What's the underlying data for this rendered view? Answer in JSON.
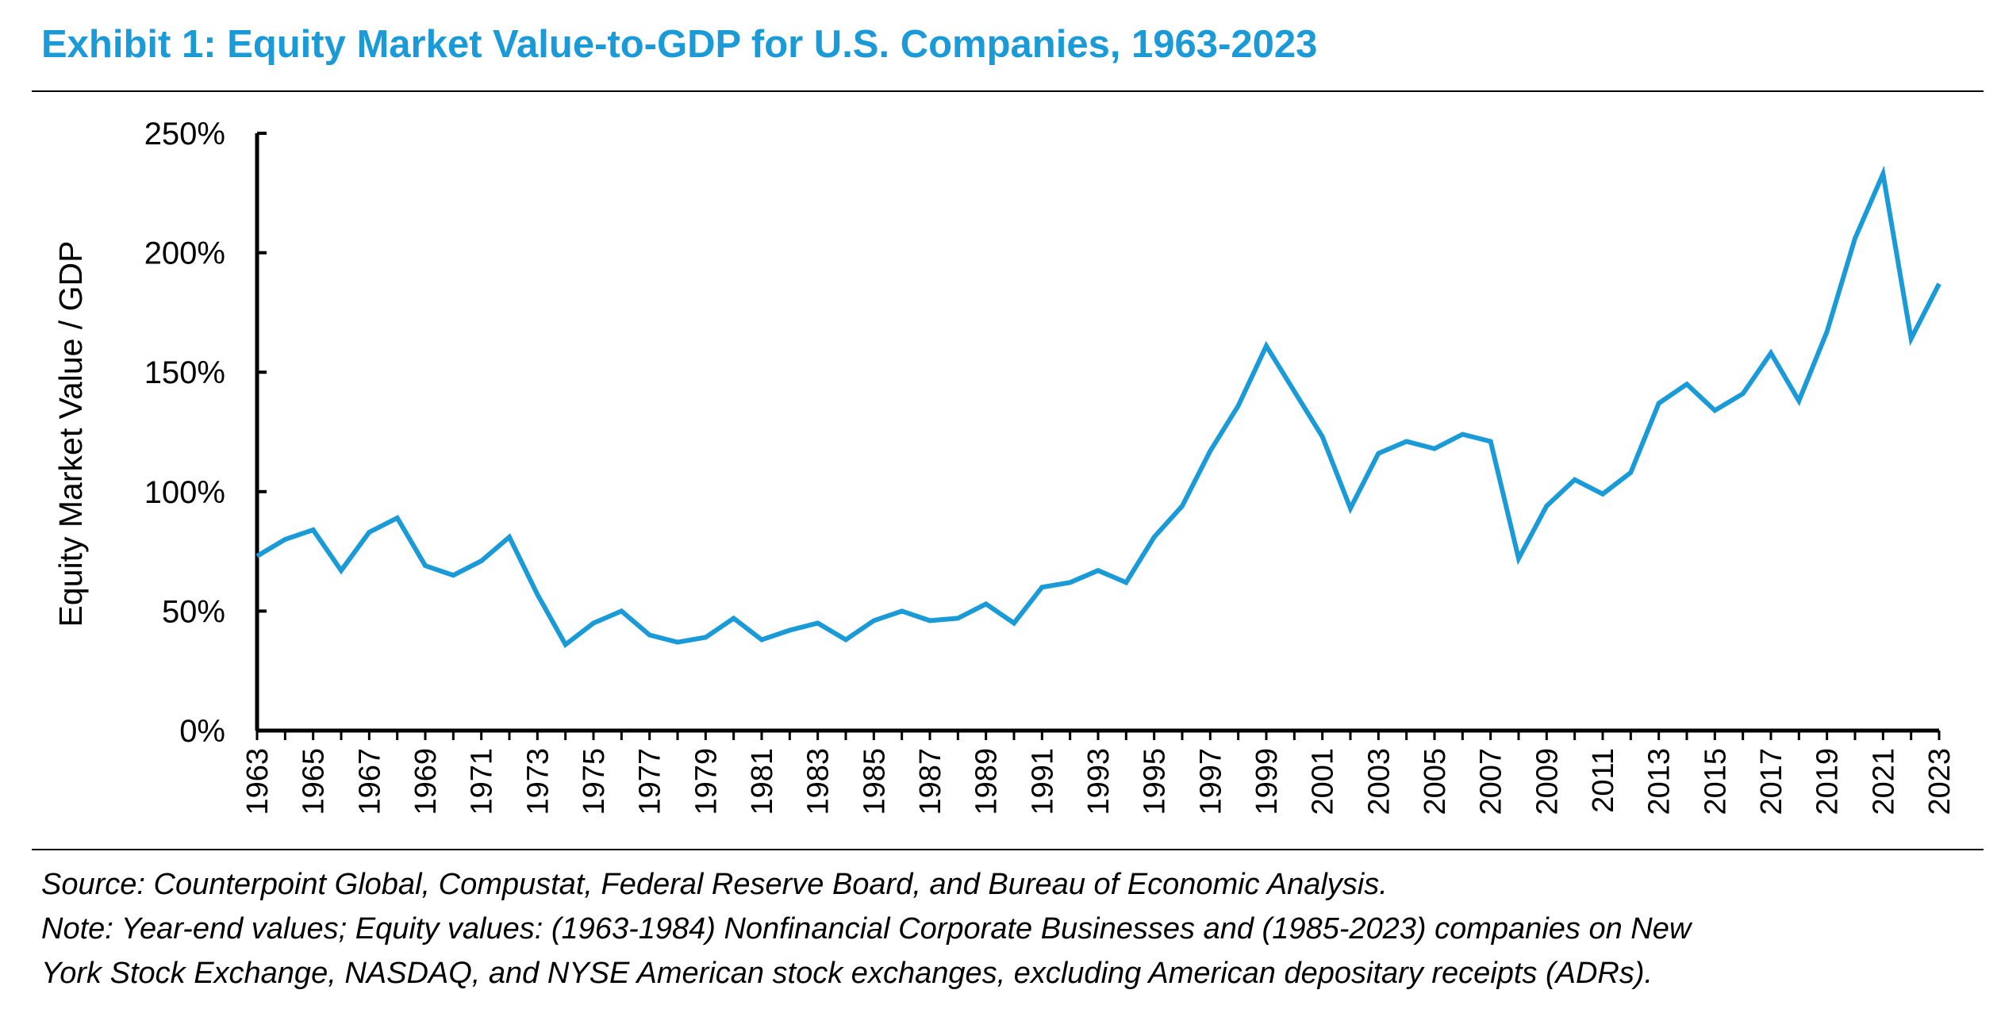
{
  "title": "Exhibit 1: Equity Market Value-to-GDP for U.S. Companies, 1963-2023",
  "footer": {
    "source": "Source: Counterpoint Global, Compustat, Federal Reserve Board, and Bureau of Economic Analysis.",
    "note_line1": "Note: Year-end values; Equity values: (1963-1984) Nonfinancial Corporate Businesses and (1985-2023) companies on New",
    "note_line2": "York Stock Exchange, NASDAQ, and NYSE American stock exchanges, excluding American depositary receipts (ADRs)."
  },
  "chart_data": {
    "type": "line",
    "title": "Exhibit 1: Equity Market Value-to-GDP for U.S. Companies, 1963-2023",
    "xlabel": "",
    "ylabel": "Equity Market Value / GDP",
    "ylim": [
      0,
      250
    ],
    "y_ticks": [
      "0%",
      "50%",
      "100%",
      "150%",
      "200%",
      "250%"
    ],
    "y_tick_values": [
      0,
      50,
      100,
      150,
      200,
      250
    ],
    "x": [
      1963,
      1964,
      1965,
      1966,
      1967,
      1968,
      1969,
      1970,
      1971,
      1972,
      1973,
      1974,
      1975,
      1976,
      1977,
      1978,
      1979,
      1980,
      1981,
      1982,
      1983,
      1984,
      1985,
      1986,
      1987,
      1988,
      1989,
      1990,
      1991,
      1992,
      1993,
      1994,
      1995,
      1996,
      1997,
      1998,
      1999,
      2000,
      2001,
      2002,
      2003,
      2004,
      2005,
      2006,
      2007,
      2008,
      2009,
      2010,
      2011,
      2012,
      2013,
      2014,
      2015,
      2016,
      2017,
      2018,
      2019,
      2020,
      2021,
      2022,
      2023
    ],
    "x_tick_labels": [
      "1963",
      "1965",
      "1967",
      "1969",
      "1971",
      "1973",
      "1975",
      "1977",
      "1979",
      "1981",
      "1983",
      "1985",
      "1987",
      "1989",
      "1991",
      "1993",
      "1995",
      "1997",
      "1999",
      "2001",
      "2003",
      "2005",
      "2007",
      "2009",
      "2011",
      "2013",
      "2015",
      "2017",
      "2019",
      "2021",
      "2023"
    ],
    "series": [
      {
        "values": [
          73,
          80,
          84,
          67,
          83,
          89,
          69,
          65,
          71,
          81,
          57,
          36,
          45,
          50,
          40,
          37,
          39,
          47,
          38,
          42,
          45,
          38,
          46,
          50,
          46,
          47,
          53,
          45,
          60,
          62,
          67,
          62,
          81,
          94,
          117,
          136,
          161,
          142,
          123,
          93,
          116,
          121,
          118,
          124,
          121,
          72,
          94,
          105,
          99,
          108,
          137,
          145,
          134,
          141,
          158,
          138,
          167,
          206,
          233,
          164,
          187
        ]
      }
    ],
    "grid": false,
    "legend": "none",
    "colors": {
      "line": "#1a9ad6",
      "title": "#1a9ad6",
      "axis": "#000000"
    }
  }
}
